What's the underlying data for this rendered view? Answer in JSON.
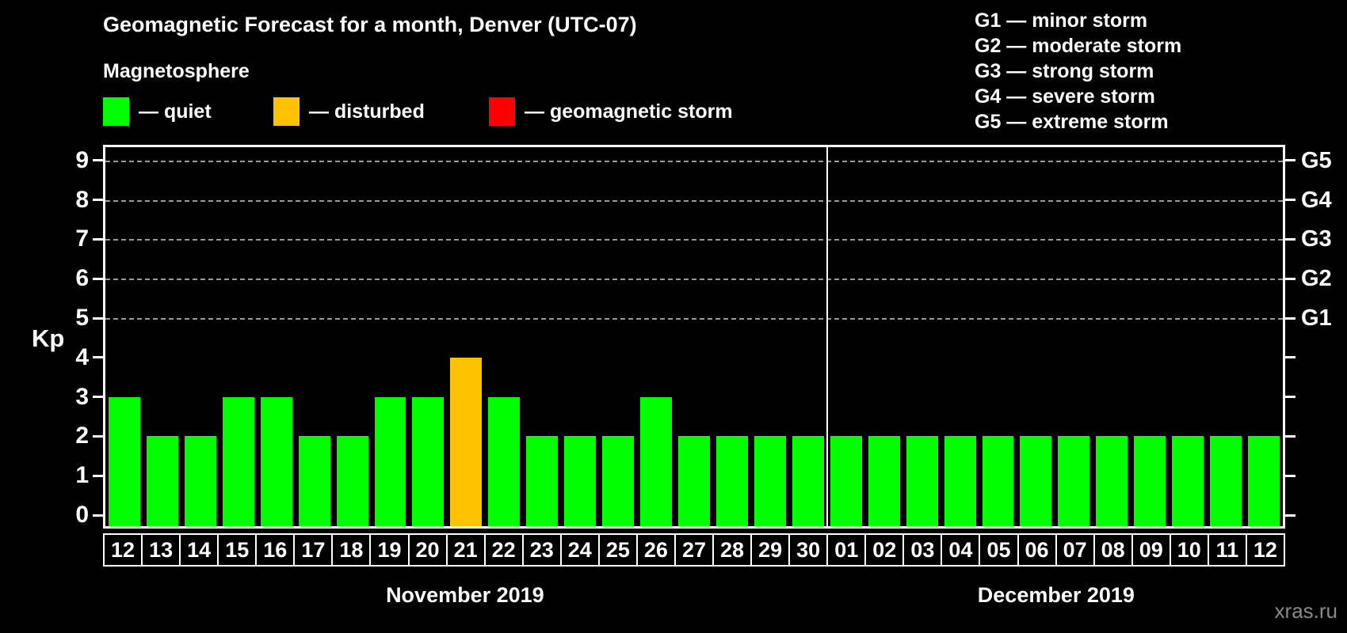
{
  "title": "Geomagnetic Forecast for a month, Denver (UTC-07)",
  "subtitle": "Magnetosphere",
  "legend": [
    {
      "name": "quiet",
      "label": "— quiet",
      "color": "#00ff00"
    },
    {
      "name": "disturbed",
      "label": "— disturbed",
      "color": "#ffc200"
    },
    {
      "name": "geomagnetic-storm",
      "label": "— geomagnetic storm",
      "color": "#ff0000"
    }
  ],
  "g_scale_legend": [
    "G1 — minor storm",
    "G2 — moderate storm",
    "G3 — strong storm",
    "G4 — severe storm",
    "G5 — extreme storm"
  ],
  "watermark": "xras.ru",
  "chart_data": {
    "type": "bar",
    "ylabel": "Kp",
    "ylim": [
      0,
      9
    ],
    "yticks": [
      0,
      1,
      2,
      3,
      4,
      5,
      6,
      7,
      8,
      9
    ],
    "gridlines_kp": [
      5,
      6,
      7,
      8,
      9
    ],
    "grid": "dashed-horizontal",
    "legend_position": "top",
    "right_axis_labels": [
      {
        "label": "G1",
        "kp": 5
      },
      {
        "label": "G2",
        "kp": 6
      },
      {
        "label": "G3",
        "kp": 7
      },
      {
        "label": "G4",
        "kp": 8
      },
      {
        "label": "G5",
        "kp": 9
      }
    ],
    "status_colors": {
      "quiet": "#00ff00",
      "disturbed": "#ffc200",
      "storm": "#ff0000"
    },
    "months": [
      {
        "label": "November 2019",
        "days": [
          {
            "date": "12",
            "kp": 3,
            "status": "quiet"
          },
          {
            "date": "13",
            "kp": 2,
            "status": "quiet"
          },
          {
            "date": "14",
            "kp": 2,
            "status": "quiet"
          },
          {
            "date": "15",
            "kp": 3,
            "status": "quiet"
          },
          {
            "date": "16",
            "kp": 3,
            "status": "quiet"
          },
          {
            "date": "17",
            "kp": 2,
            "status": "quiet"
          },
          {
            "date": "18",
            "kp": 2,
            "status": "quiet"
          },
          {
            "date": "19",
            "kp": 3,
            "status": "quiet"
          },
          {
            "date": "20",
            "kp": 3,
            "status": "quiet"
          },
          {
            "date": "21",
            "kp": 4,
            "status": "disturbed"
          },
          {
            "date": "22",
            "kp": 3,
            "status": "quiet"
          },
          {
            "date": "23",
            "kp": 2,
            "status": "quiet"
          },
          {
            "date": "24",
            "kp": 2,
            "status": "quiet"
          },
          {
            "date": "25",
            "kp": 2,
            "status": "quiet"
          },
          {
            "date": "26",
            "kp": 3,
            "status": "quiet"
          },
          {
            "date": "27",
            "kp": 2,
            "status": "quiet"
          },
          {
            "date": "28",
            "kp": 2,
            "status": "quiet"
          },
          {
            "date": "29",
            "kp": 2,
            "status": "quiet"
          },
          {
            "date": "30",
            "kp": 2,
            "status": "quiet"
          }
        ]
      },
      {
        "label": "December 2019",
        "days": [
          {
            "date": "01",
            "kp": 2,
            "status": "quiet"
          },
          {
            "date": "02",
            "kp": 2,
            "status": "quiet"
          },
          {
            "date": "03",
            "kp": 2,
            "status": "quiet"
          },
          {
            "date": "04",
            "kp": 2,
            "status": "quiet"
          },
          {
            "date": "05",
            "kp": 2,
            "status": "quiet"
          },
          {
            "date": "06",
            "kp": 2,
            "status": "quiet"
          },
          {
            "date": "07",
            "kp": 2,
            "status": "quiet"
          },
          {
            "date": "08",
            "kp": 2,
            "status": "quiet"
          },
          {
            "date": "09",
            "kp": 2,
            "status": "quiet"
          },
          {
            "date": "10",
            "kp": 2,
            "status": "quiet"
          },
          {
            "date": "11",
            "kp": 2,
            "status": "quiet"
          },
          {
            "date": "12",
            "kp": 2,
            "status": "quiet"
          }
        ]
      }
    ]
  }
}
